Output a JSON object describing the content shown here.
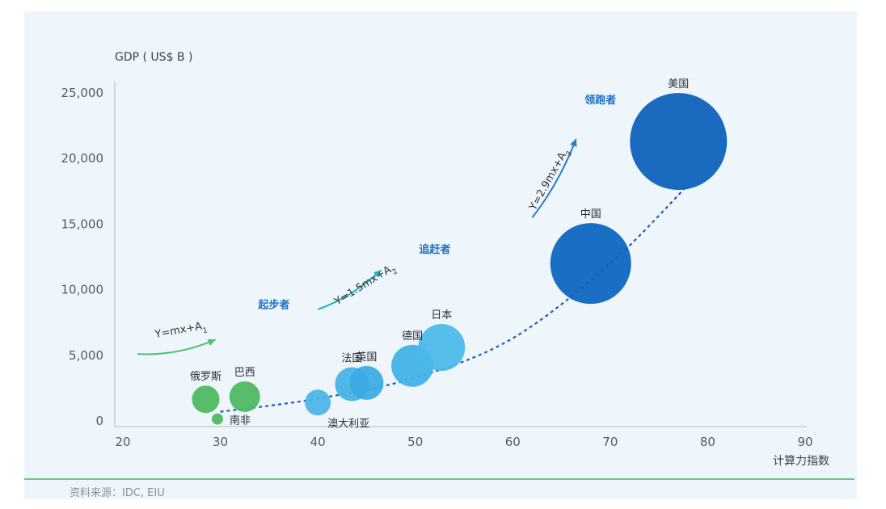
{
  "chart_data": {
    "type": "scatter",
    "ylabel": "GDP ( US$ B )",
    "xlabel": "计算力指数",
    "xlim": [
      20,
      90
    ],
    "ylim": [
      0,
      25000
    ],
    "x_ticks": [
      "20",
      "30",
      "40",
      "50",
      "60",
      "70",
      "80",
      "90"
    ],
    "x_tick_values": [
      20,
      30,
      40,
      50,
      60,
      70,
      80,
      90
    ],
    "y_ticks": [
      "0",
      "5,000",
      "10,000",
      "15,000",
      "20,000",
      "25,000"
    ],
    "y_tick_values": [
      0,
      5000,
      10000,
      15000,
      20000,
      25000
    ],
    "grid": false,
    "points": [
      {
        "label": "俄罗斯",
        "x": 28.5,
        "y": 1650,
        "size": 17,
        "color": "#4cb860",
        "label_pos": "above"
      },
      {
        "label": "巴西",
        "x": 32.5,
        "y": 1850,
        "size": 19,
        "color": "#4cb860",
        "label_pos": "above"
      },
      {
        "label": "南非",
        "x": 29.7,
        "y": 150,
        "size": 7,
        "color": "#4cb860",
        "label_pos": "right"
      },
      {
        "label": "澳大利亚",
        "x": 40,
        "y": 1400,
        "size": 16,
        "color": "#4ab4e6",
        "label_pos": "below-right"
      },
      {
        "label": "法国",
        "x": 43.5,
        "y": 2800,
        "size": 21,
        "color": "#45b1e6",
        "label_pos": "above"
      },
      {
        "label": "英国",
        "x": 45,
        "y": 2900,
        "size": 21,
        "color": "#3aaae3",
        "label_pos": "above"
      },
      {
        "label": "德国",
        "x": 49.7,
        "y": 4200,
        "size": 26,
        "color": "#3fb0e6",
        "label_pos": "above"
      },
      {
        "label": "日本",
        "x": 52.7,
        "y": 5600,
        "size": 29,
        "color": "#49b9ea",
        "label_pos": "above"
      },
      {
        "label": "中国",
        "x": 68,
        "y": 12000,
        "size": 50,
        "color": "#0a63bf",
        "label_pos": "above"
      },
      {
        "label": "美国",
        "x": 77,
        "y": 21300,
        "size": 60,
        "color": "#0a5fbb",
        "label_pos": "above"
      }
    ],
    "trend_curve": [
      {
        "x": 30,
        "y": 700
      },
      {
        "x": 40,
        "y": 1700
      },
      {
        "x": 50,
        "y": 3300
      },
      {
        "x": 60,
        "y": 6300
      },
      {
        "x": 70,
        "y": 12000
      },
      {
        "x": 78,
        "y": 18000
      }
    ],
    "phases": [
      {
        "label": "起步者",
        "equation": "Y=mx+A",
        "eq_sub": "1",
        "arrow_color": "#4cc36a",
        "label_at": {
          "x": 35.5,
          "y": 8600
        },
        "arrow": {
          "x1": 21.5,
          "y1": 5100,
          "x2": 29.5,
          "y2": 6200
        },
        "eq_at": {
          "x": 26,
          "y": 6700
        }
      },
      {
        "label": "追赶者",
        "equation": "Y=1.5mx+A",
        "eq_sub": "2",
        "arrow_color": "#1bb2c8",
        "label_at": {
          "x": 52,
          "y": 12800
        },
        "arrow": {
          "x1": 40,
          "y1": 8500,
          "x2": 46.5,
          "y2": 11500
        },
        "eq_at": {
          "x": 45,
          "y": 10200
        }
      },
      {
        "label": "领跑者",
        "equation": "Y=2.9mx+A",
        "eq_sub": "3",
        "arrow_color": "#2a7cc8",
        "label_at": {
          "x": 69,
          "y": 24200
        },
        "arrow": {
          "x1": 62,
          "y1": 15500,
          "x2": 66.5,
          "y2": 21500
        },
        "eq_at": {
          "x": 64,
          "y": 18300
        }
      }
    ]
  },
  "source_note": "资料来源：IDC, EIU"
}
